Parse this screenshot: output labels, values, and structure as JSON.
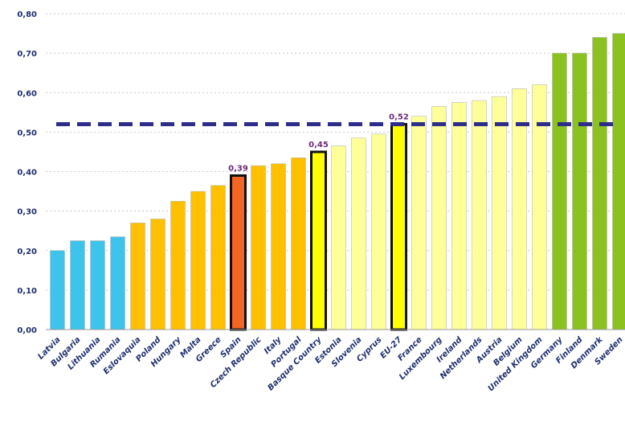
{
  "chart_data": {
    "type": "bar",
    "title": "",
    "xlabel": "",
    "ylabel": "",
    "ylim": [
      0,
      0.8
    ],
    "yticks": [
      "0,00",
      "0,10",
      "0,20",
      "0,30",
      "0,40",
      "0,50",
      "0,60",
      "0,70",
      "0,80"
    ],
    "grid": true,
    "reference_line": {
      "value": 0.52,
      "style": "dashed",
      "color": "#2e2e8a"
    },
    "categories": [
      "Latvia",
      "Bulgaria",
      "Lithuania",
      "Rumania",
      "Eslovaquia",
      "Poland",
      "Hungary",
      "Malta",
      "Greece",
      "Spain",
      "Czech Republic",
      "Italy",
      "Portugal",
      "Basque Country",
      "Estonia",
      "Slovenia",
      "Cyprus",
      "EU-27",
      "France",
      "Luxembourg",
      "Ireland",
      "Netherlands",
      "Austria",
      "Belgium",
      "United Kingdom",
      "Germany",
      "Finland",
      "Denmark",
      "Sweden"
    ],
    "values": [
      0.2,
      0.225,
      0.225,
      0.235,
      0.27,
      0.28,
      0.325,
      0.35,
      0.365,
      0.39,
      0.415,
      0.42,
      0.435,
      0.45,
      0.465,
      0.485,
      0.495,
      0.52,
      0.54,
      0.565,
      0.575,
      0.58,
      0.59,
      0.61,
      0.62,
      0.7,
      0.7,
      0.74,
      0.75
    ],
    "colors": [
      "#3cc4ec",
      "#3cc4ec",
      "#3cc4ec",
      "#3cc4ec",
      "#ffc000",
      "#ffc000",
      "#ffc000",
      "#ffc000",
      "#ffc000",
      "#f26522",
      "#ffc000",
      "#ffc000",
      "#ffc000",
      "#ffff00",
      "#ffff99",
      "#ffff99",
      "#ffff99",
      "#ffff00",
      "#ffff99",
      "#ffff99",
      "#ffff99",
      "#ffff99",
      "#ffff99",
      "#ffff99",
      "#ffff99",
      "#8cc21f",
      "#8cc21f",
      "#8cc21f",
      "#8cc21f"
    ],
    "highlighted": [
      "Spain",
      "Basque Country",
      "EU-27"
    ],
    "data_labels": [
      {
        "category": "Spain",
        "text": "0,39"
      },
      {
        "category": "Basque Country",
        "text": "0,45"
      },
      {
        "category": "EU-27",
        "text": "0,52"
      }
    ]
  }
}
